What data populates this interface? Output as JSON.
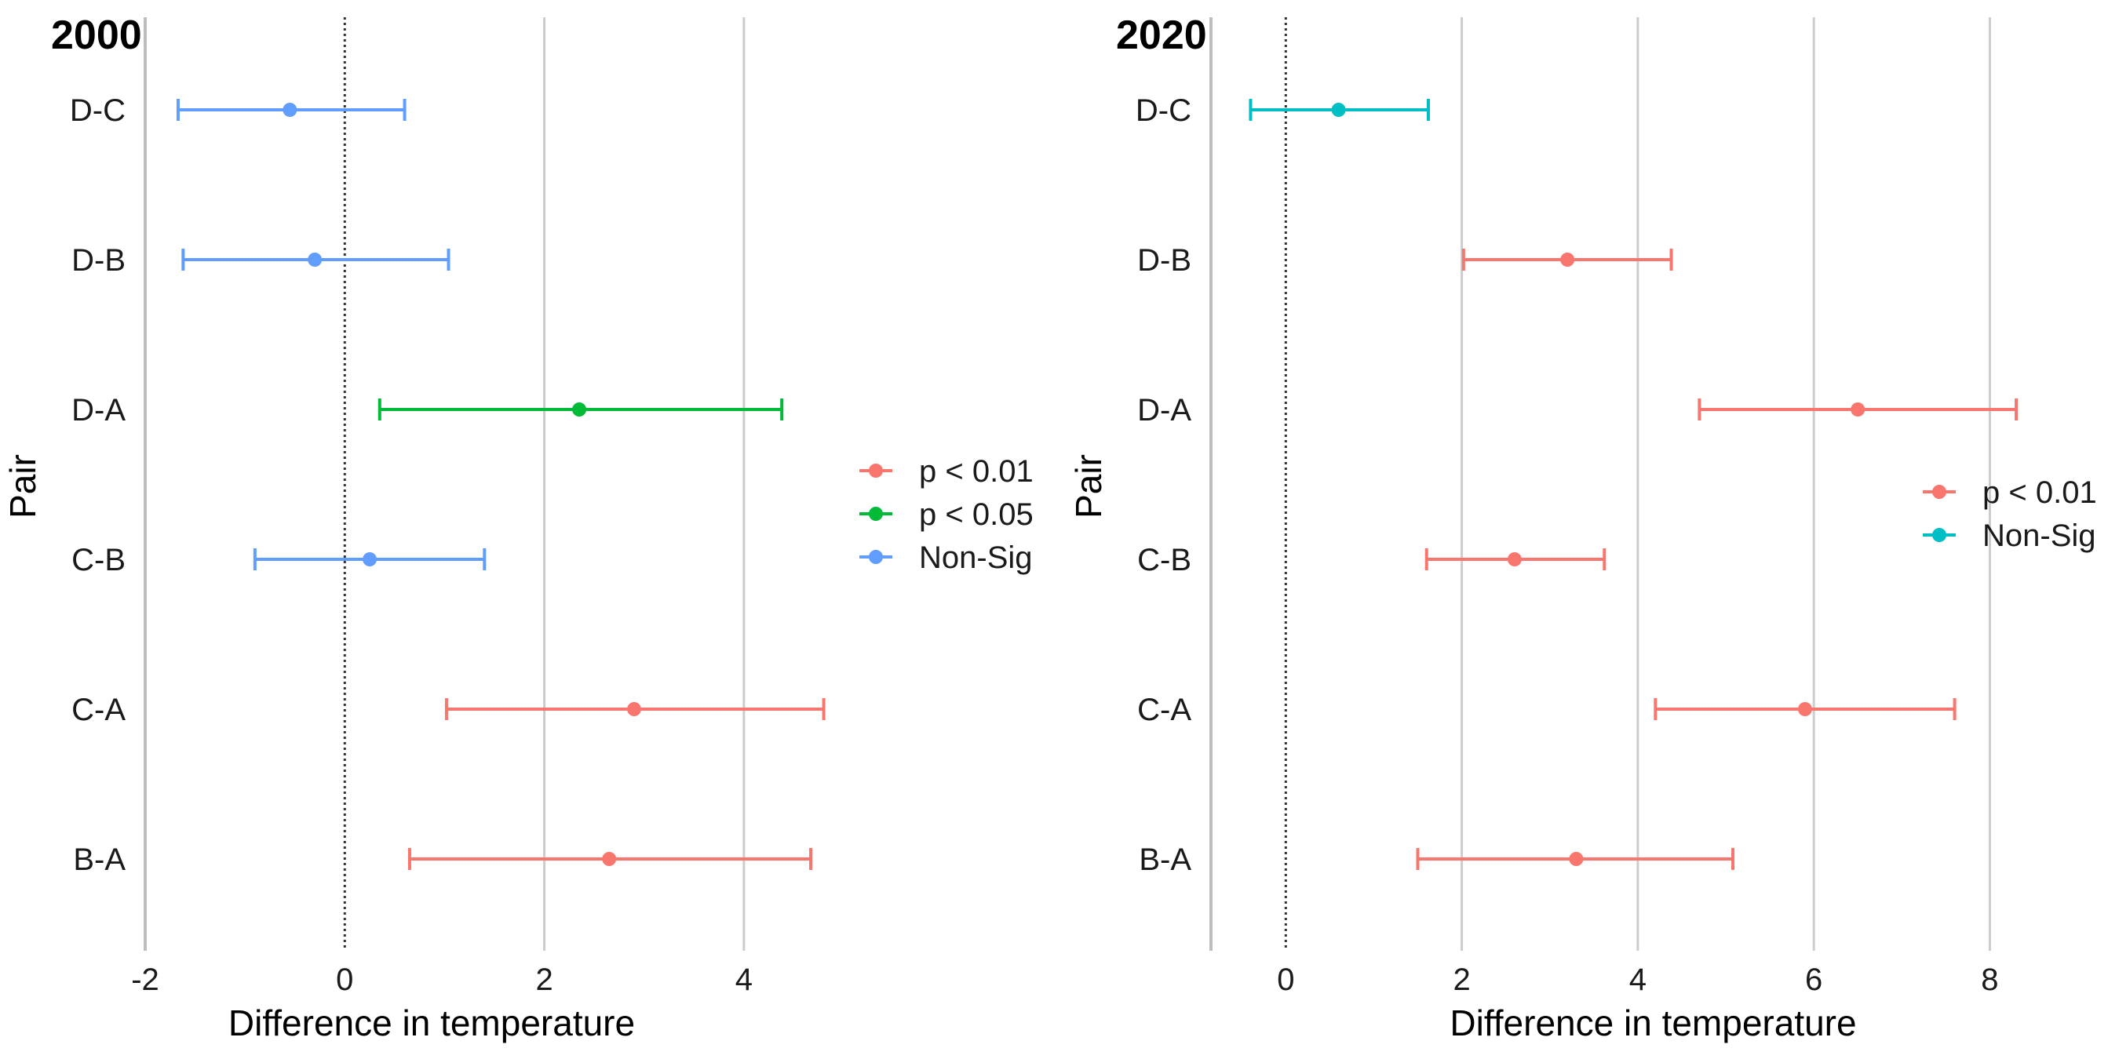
{
  "chart_data": [
    {
      "type": "errorbar",
      "title": "2000",
      "xlabel": "Difference in temperature",
      "ylabel": "Pair",
      "categories": [
        "D-C",
        "D-B",
        "D-A",
        "C-B",
        "C-A",
        "B-A"
      ],
      "xlim": [
        -2,
        5
      ],
      "xticks": [
        -2,
        0,
        2,
        4
      ],
      "reference_line": 0,
      "grid": "vertical major lines",
      "legend_position": "right",
      "legend": [
        {
          "label": "p < 0.01",
          "color": "#F8766D"
        },
        {
          "label": "p < 0.05",
          "color": "#00BA38"
        },
        {
          "label": "Non-Sig",
          "color": "#619CFF"
        }
      ],
      "points": [
        {
          "pair": "D-C",
          "estimate": -0.55,
          "lower": -1.67,
          "upper": 0.6,
          "group": "Non-Sig"
        },
        {
          "pair": "D-B",
          "estimate": -0.3,
          "lower": -1.62,
          "upper": 1.04,
          "group": "Non-Sig"
        },
        {
          "pair": "D-A",
          "estimate": 2.35,
          "lower": 0.35,
          "upper": 4.38,
          "group": "p < 0.05"
        },
        {
          "pair": "C-B",
          "estimate": 0.25,
          "lower": -0.9,
          "upper": 1.4,
          "group": "Non-Sig"
        },
        {
          "pair": "C-A",
          "estimate": 2.9,
          "lower": 1.02,
          "upper": 4.8,
          "group": "p < 0.01"
        },
        {
          "pair": "B-A",
          "estimate": 2.65,
          "lower": 0.65,
          "upper": 4.67,
          "group": "p < 0.01"
        }
      ]
    },
    {
      "type": "errorbar",
      "title": "2020",
      "xlabel": "Difference in temperature",
      "ylabel": "Pair",
      "categories": [
        "D-C",
        "D-B",
        "D-A",
        "C-B",
        "C-A",
        "B-A"
      ],
      "xlim": [
        -0.85,
        9.2
      ],
      "xticks": [
        0,
        2,
        4,
        6,
        8
      ],
      "reference_line": 0,
      "grid": "vertical major lines",
      "legend_position": "right",
      "legend": [
        {
          "label": "p < 0.01",
          "color": "#F8766D"
        },
        {
          "label": "Non-Sig",
          "color": "#00BFC4"
        }
      ],
      "points": [
        {
          "pair": "D-C",
          "estimate": 0.6,
          "lower": -0.4,
          "upper": 1.62,
          "group": "Non-Sig"
        },
        {
          "pair": "D-B",
          "estimate": 3.2,
          "lower": 2.02,
          "upper": 4.38,
          "group": "p < 0.01"
        },
        {
          "pair": "D-A",
          "estimate": 6.5,
          "lower": 4.7,
          "upper": 8.3,
          "group": "p < 0.01"
        },
        {
          "pair": "C-B",
          "estimate": 2.6,
          "lower": 1.6,
          "upper": 3.62,
          "group": "p < 0.01"
        },
        {
          "pair": "C-A",
          "estimate": 5.9,
          "lower": 4.2,
          "upper": 7.6,
          "group": "p < 0.01"
        },
        {
          "pair": "B-A",
          "estimate": 3.3,
          "lower": 1.5,
          "upper": 5.08,
          "group": "p < 0.01"
        }
      ]
    }
  ]
}
